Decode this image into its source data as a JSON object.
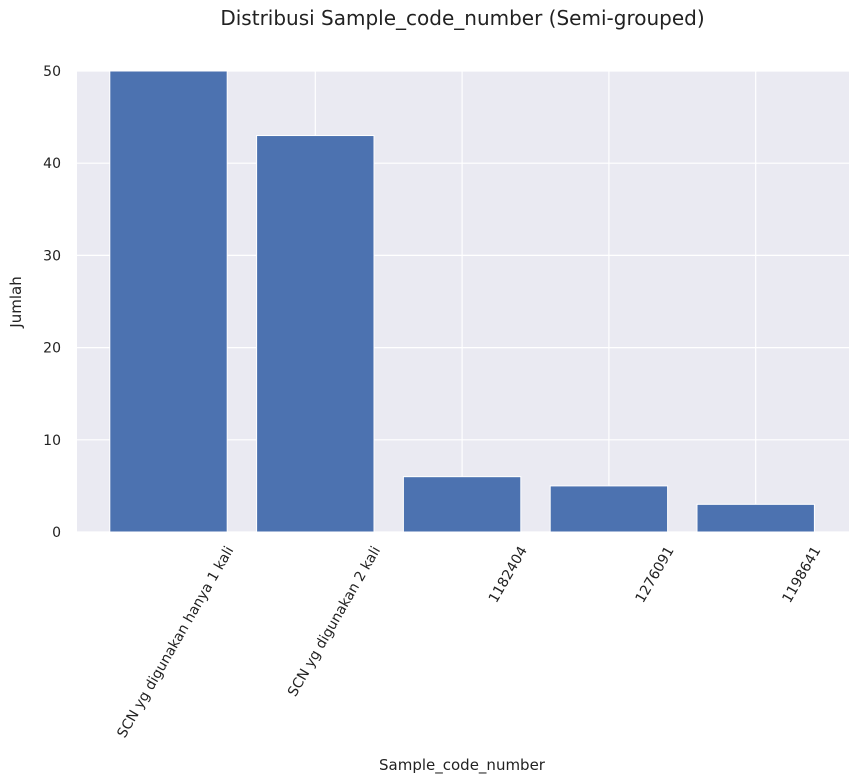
{
  "chart_data": {
    "type": "bar",
    "title": "Distribusi Sample_code_number (Semi-grouped)",
    "xlabel": "Sample_code_number",
    "ylabel": "Jumlah",
    "categories": [
      "SCN yg digunakan hanya 1 kali",
      "SCN yg digunakan 2 kali",
      "1182404",
      "1276091",
      "1198641"
    ],
    "values": [
      50,
      43,
      6,
      5,
      3
    ],
    "ylim": [
      0,
      50
    ],
    "yticks": [
      0,
      10,
      20,
      30,
      40,
      50
    ],
    "grid": true,
    "bar_color": "#4c72b0",
    "background_color": "#eaeaf2",
    "grid_color": "#ffffff"
  }
}
